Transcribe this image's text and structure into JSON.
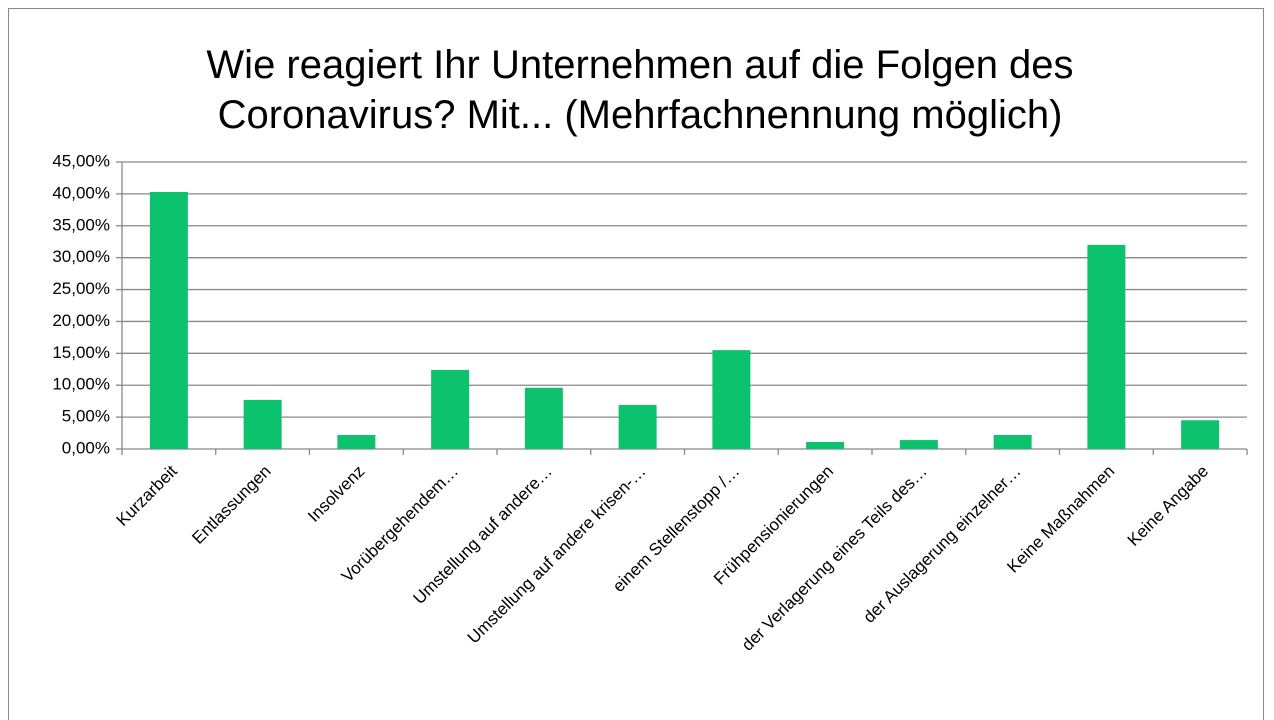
{
  "chart_data": {
    "type": "bar",
    "title": "Wie reagiert Ihr Unternehmen auf die Folgen des Coronavirus? Mit... (Mehrfachnennung möglich)",
    "categories": [
      "Kurzarbeit",
      "Entlassungen",
      "Insolvenz",
      "Vorübergehendem…",
      "Umstellung auf andere…",
      "Umstellung auf andere krisen-…",
      "einem Stellenstopp /…",
      "Frühpensionierungen",
      "der Verlagerung eines Teils des…",
      "der Auslagerung einzelner…",
      "Keine Maßnahmen",
      "Keine Angabe"
    ],
    "values": [
      40.3,
      7.7,
      2.2,
      12.4,
      9.6,
      6.9,
      15.5,
      1.1,
      1.4,
      2.2,
      32.0,
      4.5
    ],
    "color": "#0cc26c",
    "ylim": [
      0,
      45
    ],
    "yticks": [
      {
        "value": 0,
        "label": "0,00%"
      },
      {
        "value": 5,
        "label": "5,00%"
      },
      {
        "value": 10,
        "label": "10,00%"
      },
      {
        "value": 15,
        "label": "15,00%"
      },
      {
        "value": 20,
        "label": "20,00%"
      },
      {
        "value": 25,
        "label": "25,00%"
      },
      {
        "value": 30,
        "label": "30,00%"
      },
      {
        "value": 35,
        "label": "35,00%"
      },
      {
        "value": 40,
        "label": "40,00%"
      },
      {
        "value": 45,
        "label": "45,00%"
      }
    ],
    "grid": true
  }
}
